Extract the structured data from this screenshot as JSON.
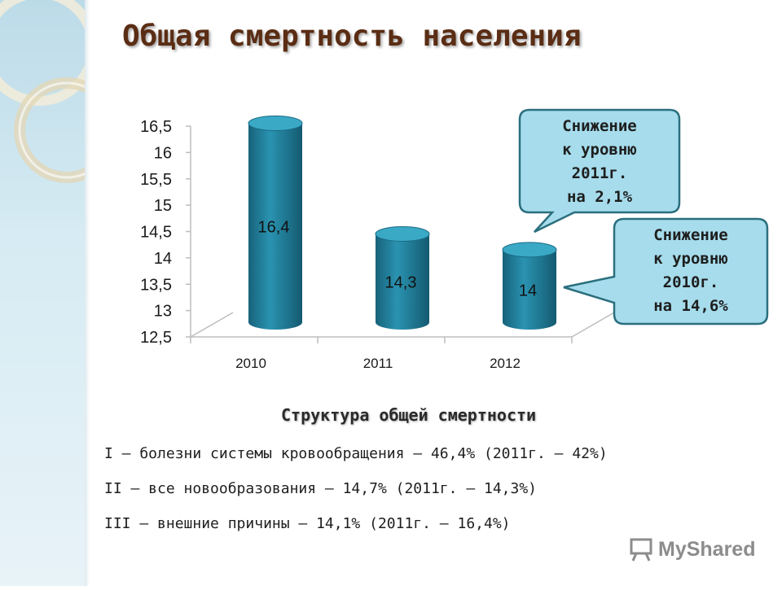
{
  "title": "Общая смертность населения",
  "chart_data": {
    "type": "bar",
    "categories": [
      "2010",
      "2011",
      "2012"
    ],
    "values": [
      16.4,
      14.3,
      14
    ],
    "value_labels": [
      "16,4",
      "14,3",
      "14"
    ],
    "y_ticks": [
      "12,5",
      "13",
      "13,5",
      "14",
      "14,5",
      "15",
      "15,5",
      "16",
      "16,5"
    ],
    "ylim": [
      12.5,
      16.5
    ],
    "bar_color": "#1e7a96"
  },
  "callouts": [
    {
      "lines": [
        "Снижение",
        "к уровню",
        "2011г.",
        "на 2,1%"
      ]
    },
    {
      "lines": [
        "Снижение",
        "к уровню",
        "2010г.",
        "на 14,6%"
      ]
    }
  ],
  "structure": {
    "title": "Структура общей смертности",
    "items": [
      "I – болезни системы кровообращения – 46,4% (2011г. – 42%)",
      "II – все новообразования – 14,7% (2011г. – 14,3%)",
      "III – внешние причины – 14,1% (2011г. – 16,4%)"
    ]
  },
  "watermark": {
    "text": "MyShared",
    "icon": "presentation-board-icon"
  },
  "colors": {
    "title": "#5a2d14",
    "callout_fill": "#a6dcec",
    "callout_border": "#2b6f7e"
  }
}
